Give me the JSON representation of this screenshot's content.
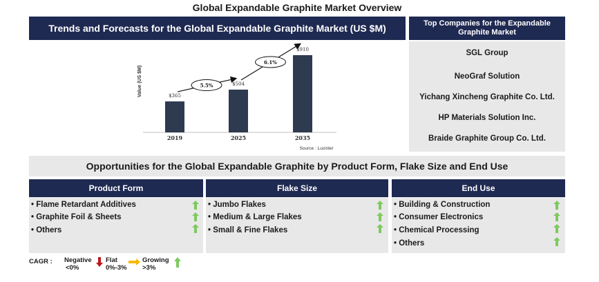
{
  "title": "Global Expandable Graphite Market Overview",
  "chart_header": "Trends and Forecasts for the Global Expandable Graphite Market (US $M)",
  "chart_data": {
    "type": "bar",
    "categories": [
      "2019",
      "2025",
      "2035"
    ],
    "values": [
      365,
      504,
      910
    ],
    "value_labels": [
      "$365",
      "$504",
      "$910"
    ],
    "ylabel": "Value (US $M)",
    "cagr_annotations": [
      "5.5%",
      "6.1%"
    ],
    "source": "Source : Lucintel",
    "bar_color": "#2e3a4f"
  },
  "companies": {
    "header": "Top Companies for the Expandable Graphite Market",
    "items": [
      "SGL Group",
      "NeoGraf Solution",
      "Yichang Xincheng Graphite Co. Ltd.",
      "HP Materials Solution Inc.",
      "Braide Graphite Group Co. Ltd."
    ]
  },
  "opportunities_title": "Opportunities for the Global Expandable Graphite by Product Form, Flake Size and End Use",
  "columns": [
    {
      "header": "Product Form",
      "items": [
        "• Flame Retardant Additives",
        "• Graphite Foil & Sheets",
        "• Others"
      ],
      "trends": [
        "growing",
        "growing",
        "growing"
      ]
    },
    {
      "header": "Flake Size",
      "items": [
        "• Jumbo Flakes",
        "• Medium & Large Flakes",
        "• Small & Fine Flakes"
      ],
      "trends": [
        "growing",
        "growing",
        "growing"
      ]
    },
    {
      "header": "End Use",
      "items": [
        "• Building & Construction",
        "• Consumer Electronics",
        "• Chemical Processing",
        "• Others"
      ],
      "trends": [
        "growing",
        "growing",
        "growing",
        "growing"
      ]
    }
  ],
  "legend": {
    "label": "CAGR :",
    "negative": "Negative",
    "negative_range": "<0%",
    "flat": "Flat",
    "flat_range": "0%-3%",
    "growing": "Growing",
    "growing_range": ">3%"
  },
  "colors": {
    "navy": "#1f2a52",
    "panel": "#e8e8e8",
    "growing": "#7dc95e",
    "negative": "#c0171c",
    "flat": "#f5b800"
  }
}
